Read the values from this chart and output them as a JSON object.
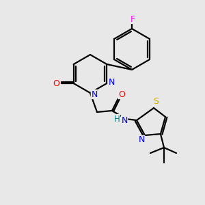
{
  "background_color": "#e8e8e8",
  "bond_color": "#000000",
  "atom_colors": {
    "N": "#0000ff",
    "O": "#ff0000",
    "S": "#ccaa00",
    "F": "#ff00ff",
    "H": "#008080",
    "C": "#000000"
  },
  "figsize": [
    3.0,
    3.0
  ],
  "dpi": 100
}
